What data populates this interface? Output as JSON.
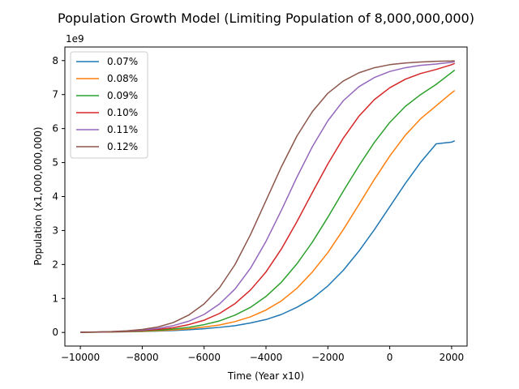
{
  "chart_data": {
    "type": "line",
    "title": "Population Growth Model (Limiting Population of 8,000,000,000)",
    "xlabel": "Time (Year x10)",
    "ylabel": "Population (x1,000,000,000)",
    "y_offset_label": "1e9",
    "xlim": [
      -10500,
      2500
    ],
    "ylim": [
      -400000000.0,
      8400000000.0
    ],
    "x_ticks": [
      -10000,
      -8000,
      -6000,
      -4000,
      -2000,
      0,
      2000
    ],
    "x_tick_labels": [
      "−10000",
      "−8000",
      "−6000",
      "−4000",
      "−2000",
      "0",
      "2000"
    ],
    "y_ticks": [
      0,
      1000000000.0,
      2000000000.0,
      3000000000.0,
      4000000000.0,
      5000000000.0,
      6000000000.0,
      7000000000.0,
      8000000000.0
    ],
    "y_tick_labels": [
      "0",
      "1",
      "2",
      "3",
      "4",
      "5",
      "6",
      "7",
      "8"
    ],
    "grid": false,
    "legend_position": "top-left",
    "x": [
      -10000,
      -9500,
      -9000,
      -8500,
      -8000,
      -7500,
      -7000,
      -6500,
      -6000,
      -5500,
      -5000,
      -4500,
      -4000,
      -3500,
      -3000,
      -2500,
      -2000,
      -1500,
      -1000,
      -500,
      0,
      500,
      1000,
      1500,
      2000,
      2100
    ],
    "series": [
      {
        "name": "0.07%",
        "color": "#1f77b4",
        "values": [
          5000000,
          9000000,
          14000000,
          20000000,
          28000000,
          40000000,
          57000000,
          80000000,
          110000000,
          150000000,
          200000000,
          280000000,
          380000000,
          530000000,
          740000000,
          1000000000,
          1370000000,
          1830000000,
          2390000000,
          3020000000,
          3700000000,
          4380000000,
          5010000000,
          5550000000,
          5600000000,
          5640000000
        ]
      },
      {
        "name": "0.08%",
        "color": "#ff7f0e",
        "values": [
          5000000,
          9000000,
          15000000,
          22000000,
          33000000,
          50000000,
          75000000,
          110000000,
          160000000,
          220000000,
          320000000,
          460000000,
          660000000,
          930000000,
          1300000000,
          1780000000,
          2350000000,
          3030000000,
          3760000000,
          4500000000,
          5190000000,
          5800000000,
          6290000000,
          6670000000,
          7050000000,
          7120000000
        ]
      },
      {
        "name": "0.09%",
        "color": "#2ca02c",
        "values": [
          5000000,
          10000000,
          17000000,
          27000000,
          42000000,
          65000000,
          100000000,
          150000000,
          230000000,
          340000000,
          510000000,
          740000000,
          1060000000,
          1480000000,
          2020000000,
          2660000000,
          3390000000,
          4160000000,
          4900000000,
          5590000000,
          6180000000,
          6650000000,
          7000000000,
          7300000000,
          7650000000,
          7720000000
        ]
      },
      {
        "name": "0.10%",
        "color": "#d62728",
        "values": [
          5000000,
          11000000,
          20000000,
          33000000,
          55000000,
          90000000,
          140000000,
          230000000,
          360000000,
          560000000,
          850000000,
          1250000000,
          1780000000,
          2460000000,
          3260000000,
          4120000000,
          4960000000,
          5720000000,
          6360000000,
          6850000000,
          7200000000,
          7450000000,
          7620000000,
          7740000000,
          7880000000,
          7920000000
        ]
      },
      {
        "name": "0.11%",
        "color": "#9467bd",
        "values": [
          5000000,
          12000000,
          22000000,
          40000000,
          70000000,
          120000000,
          200000000,
          330000000,
          530000000,
          840000000,
          1280000000,
          1890000000,
          2680000000,
          3600000000,
          4570000000,
          5470000000,
          6230000000,
          6820000000,
          7230000000,
          7500000000,
          7680000000,
          7790000000,
          7860000000,
          7900000000,
          7950000000,
          7970000000
        ]
      },
      {
        "name": "0.12%",
        "color": "#8c564b",
        "values": [
          5000000,
          13000000,
          25000000,
          48000000,
          90000000,
          160000000,
          290000000,
          510000000,
          840000000,
          1320000000,
          2000000000,
          2880000000,
          3880000000,
          4880000000,
          5780000000,
          6500000000,
          7040000000,
          7400000000,
          7640000000,
          7790000000,
          7880000000,
          7930000000,
          7960000000,
          7980000000,
          7990000000,
          7995000000
        ]
      }
    ]
  }
}
